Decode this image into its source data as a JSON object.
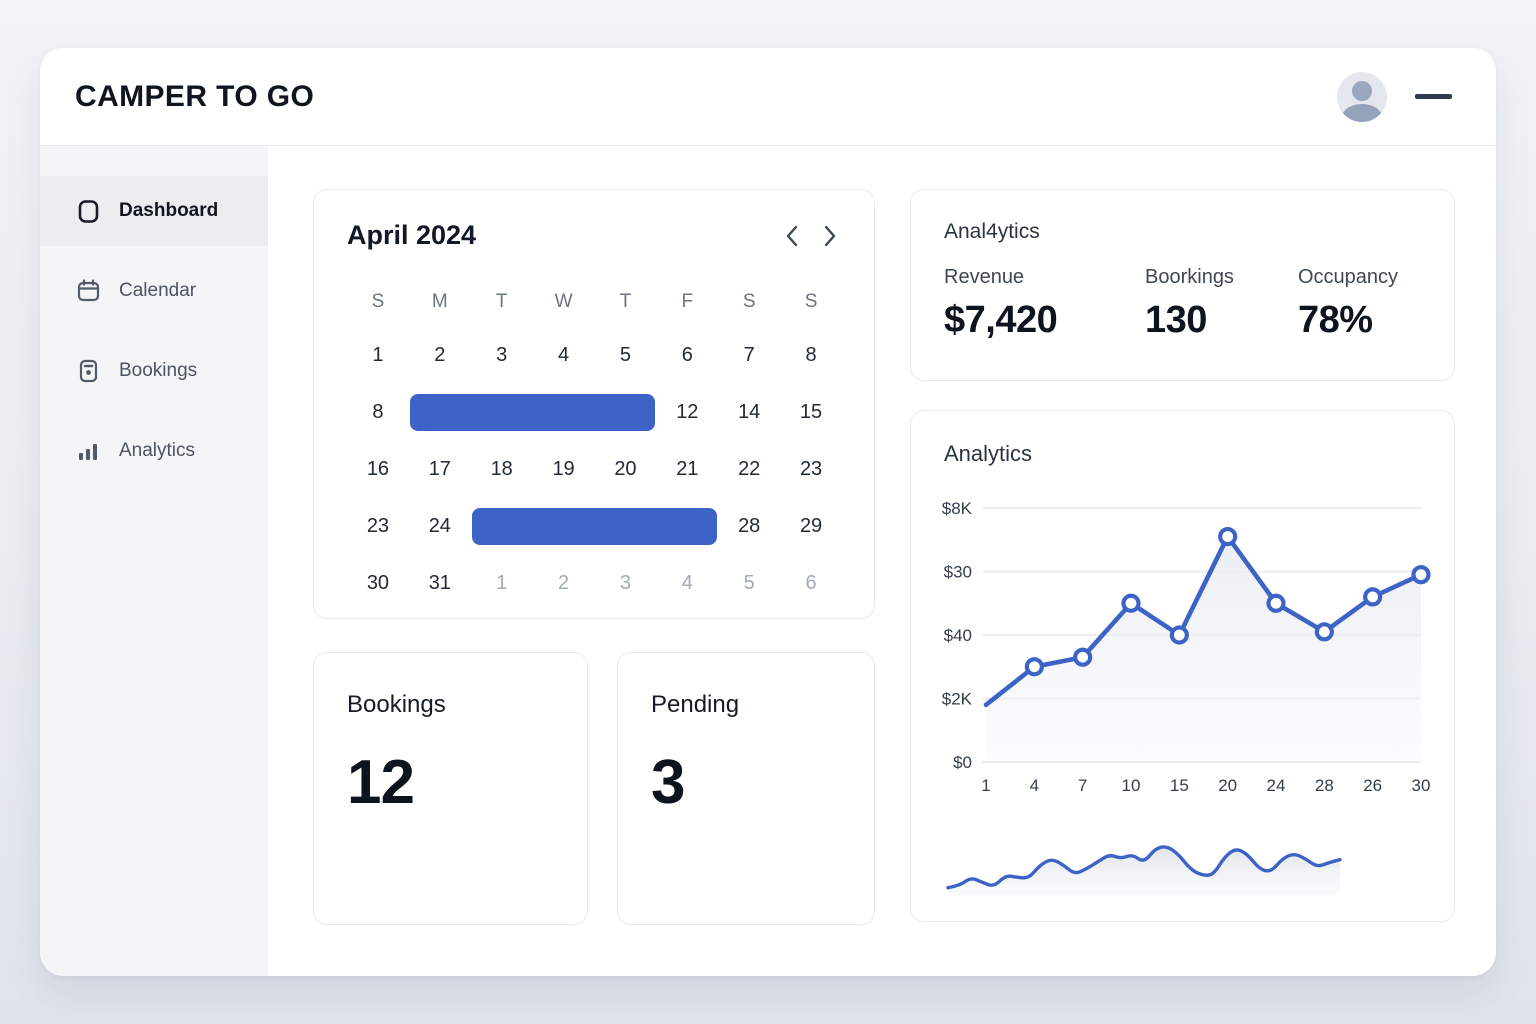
{
  "app": {
    "title": "CAMPER TO GO"
  },
  "header": {
    "icons": {
      "avatar": "user-avatar-icon",
      "menu": "dash-menu-icon"
    }
  },
  "sidebar": {
    "items": [
      {
        "label": "Dashboard",
        "icon": "dashboard-icon",
        "active": true
      },
      {
        "label": "Calendar",
        "icon": "calendar-icon",
        "active": false
      },
      {
        "label": "Bookings",
        "icon": "bookings-icon",
        "active": false
      },
      {
        "label": "Analytics",
        "icon": "analytics-icon",
        "active": false
      }
    ]
  },
  "calendar": {
    "title": "April 2024",
    "nav_icons": {
      "prev": "chevron-left-icon",
      "next": "chevron-right-icon"
    },
    "day_headers": [
      "S",
      "M",
      "T",
      "W",
      "T",
      "F",
      "S",
      "S"
    ],
    "rows": [
      {
        "cells": [
          {
            "t": "day",
            "v": "1"
          },
          {
            "t": "day",
            "v": "2"
          },
          {
            "t": "day",
            "v": "3"
          },
          {
            "t": "day",
            "v": "4"
          },
          {
            "t": "day",
            "v": "5"
          },
          {
            "t": "day",
            "v": "6"
          },
          {
            "t": "day",
            "v": "7"
          },
          {
            "t": "day",
            "v": "8"
          }
        ]
      },
      {
        "cells": [
          {
            "t": "day",
            "v": "8"
          },
          {
            "t": "bar",
            "span": 4
          },
          {
            "t": "day",
            "v": "12"
          },
          {
            "t": "day",
            "v": "14"
          },
          {
            "t": "day",
            "v": "15"
          }
        ]
      },
      {
        "cells": [
          {
            "t": "day",
            "v": "16"
          },
          {
            "t": "day",
            "v": "17"
          },
          {
            "t": "day",
            "v": "18"
          },
          {
            "t": "day",
            "v": "19"
          },
          {
            "t": "day",
            "v": "20"
          },
          {
            "t": "day",
            "v": "21"
          },
          {
            "t": "day",
            "v": "22"
          },
          {
            "t": "day",
            "v": "23"
          }
        ]
      },
      {
        "cells": [
          {
            "t": "day",
            "v": "23"
          },
          {
            "t": "day",
            "v": "24"
          },
          {
            "t": "bar",
            "span": 4
          },
          {
            "t": "day",
            "v": "28"
          },
          {
            "t": "day",
            "v": "29"
          }
        ]
      },
      {
        "cells": [
          {
            "t": "day",
            "v": "30"
          },
          {
            "t": "day",
            "v": "31"
          },
          {
            "t": "muted",
            "v": "1"
          },
          {
            "t": "muted",
            "v": "2"
          },
          {
            "t": "muted",
            "v": "3"
          },
          {
            "t": "muted",
            "v": "4"
          },
          {
            "t": "muted",
            "v": "5"
          },
          {
            "t": "muted",
            "v": "6"
          }
        ]
      }
    ]
  },
  "stats": {
    "title": "Anal4ytics",
    "items": [
      {
        "label": "Revenue",
        "value": "$7,420"
      },
      {
        "label": "Boorkings",
        "value": "130"
      },
      {
        "label": "Occupancy",
        "value": "78%"
      }
    ]
  },
  "analytics_card": {
    "title": "Analytics"
  },
  "metrics": [
    {
      "label": "Bookings",
      "value": "12"
    },
    {
      "label": "Pending",
      "value": "3"
    }
  ],
  "colors": {
    "accent": "#3d63c6",
    "grid": "#e8eaef",
    "baseline": "#d9dde3",
    "area_top": "#e9edf2",
    "area_bottom": "#f4f6f9",
    "tick_text": "#343d4b"
  },
  "chart_data": [
    {
      "type": "line",
      "title": "Analytics",
      "x_labels": [
        "1",
        "4",
        "7",
        "10",
        "15",
        "20",
        "24",
        "28",
        "26",
        "30"
      ],
      "y_tick_labels": [
        "$8K",
        "$30",
        "$40",
        "$2K",
        "$0"
      ],
      "values": [
        1800,
        3000,
        3300,
        5000,
        4000,
        7100,
        5000,
        4100,
        5200,
        5900
      ],
      "ylim": [
        0,
        8000
      ],
      "grid": true,
      "legend": "none",
      "marker": "open-circle",
      "first_point_marker": false
    },
    {
      "type": "area",
      "title": "activity-sparkline",
      "x_labels": [],
      "ylim": [
        0,
        100
      ],
      "grid": false,
      "values": [
        14,
        18,
        34,
        24,
        16,
        38,
        34,
        32,
        58,
        70,
        58,
        40,
        50,
        64,
        78,
        70,
        78,
        62,
        90,
        94,
        78,
        50,
        38,
        38,
        74,
        90,
        78,
        50,
        44,
        70,
        80,
        70,
        54,
        62,
        68
      ]
    }
  ]
}
